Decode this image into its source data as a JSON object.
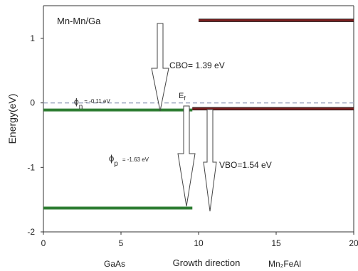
{
  "chart_data": {
    "type": "line",
    "title": "Mn-Mn/Ga",
    "ylabel": "Energy(eV)",
    "xlabel": "Growth  direction",
    "region_labels": {
      "left": "GaAs",
      "right": "Mn₂FeAl"
    },
    "xlim": [
      0,
      20
    ],
    "ylim": [
      -2,
      1.3
    ],
    "xticks": [
      0,
      5,
      10,
      15,
      20
    ],
    "yticks": [
      -2,
      -1,
      0,
      1
    ],
    "grid": false,
    "colors": {
      "gaas_band": "#2e7d32",
      "heusler_band": "#7a1f1f",
      "fermi": "#9aa4bf",
      "axis": "#333333"
    },
    "series": [
      {
        "x": [
          0,
          9.6
        ],
        "y": [
          -0.11,
          -0.11
        ]
      },
      {
        "x": [
          0,
          9.6
        ],
        "y": [
          -1.63,
          -1.63
        ]
      },
      {
        "x": [
          9.6,
          20
        ],
        "y": [
          -0.09,
          -0.09
        ]
      },
      {
        "x": [
          10,
          20
        ],
        "y": [
          1.28,
          1.28
        ]
      },
      {
        "x": [
          0,
          20
        ],
        "y": [
          0,
          0
        ]
      }
    ],
    "annotations": {
      "cbo": "CBO= 1.39  eV",
      "vbo": "VBO=1.54 eV",
      "ef": "E",
      "ef_sub": "f",
      "phi_n_sym": "ϕ",
      "phi_n_sub": "n",
      "phi_n_val": "= -0.11 eV",
      "phi_p_sym": "ϕ",
      "phi_p_sub": "p",
      "phi_p_val": "= -1.63 eV"
    }
  }
}
